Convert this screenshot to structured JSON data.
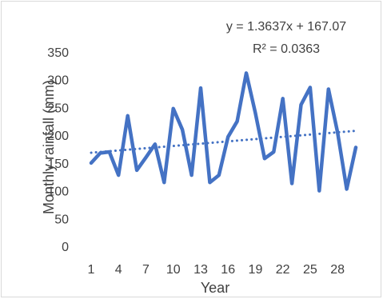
{
  "chart_data": {
    "type": "line",
    "title": "",
    "xlabel": "Year",
    "ylabel": "Monthly rainfall (mm)",
    "ylim": [
      0,
      350
    ],
    "y_ticks": [
      "0",
      "50",
      "100",
      "150",
      "200",
      "250",
      "300",
      "350"
    ],
    "x_tick_labels": [
      "1",
      "4",
      "7",
      "10",
      "13",
      "16",
      "19",
      "22",
      "25",
      "28"
    ],
    "x_tick_values": [
      1,
      4,
      7,
      10,
      13,
      16,
      19,
      22,
      25,
      28
    ],
    "x": [
      1,
      2,
      3,
      4,
      5,
      6,
      7,
      8,
      9,
      10,
      11,
      12,
      13,
      14,
      15,
      16,
      17,
      18,
      19,
      20,
      21,
      22,
      23,
      24,
      25,
      26,
      27,
      28,
      29,
      30
    ],
    "series": [
      {
        "values": [
          150,
          168,
          170,
          128,
          235,
          137,
          160,
          184,
          115,
          248,
          210,
          128,
          285,
          115,
          128,
          197,
          225,
          312,
          240,
          158,
          170,
          266,
          113,
          255,
          286,
          100,
          283,
          205,
          103,
          178
        ],
        "color": "#4472c4"
      }
    ],
    "trendline": {
      "type": "linear",
      "slope": 1.3637,
      "intercept": 167.07,
      "style": "dotted",
      "color": "#4472c4",
      "equation": "y = 1.3637x + 167.07",
      "r_squared": "R² = 0.0363"
    },
    "grid": false,
    "legend": "none"
  }
}
